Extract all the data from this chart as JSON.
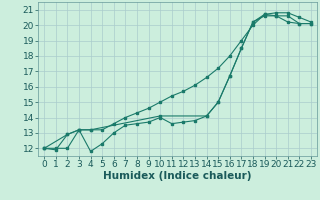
{
  "xlabel": "Humidex (Indice chaleur)",
  "bg_color": "#cceedd",
  "grid_color": "#aacccc",
  "line_color": "#1a7a6a",
  "xlim": [
    -0.5,
    23.5
  ],
  "ylim": [
    11.5,
    21.5
  ],
  "xticks": [
    0,
    1,
    2,
    3,
    4,
    5,
    6,
    7,
    8,
    9,
    10,
    11,
    12,
    13,
    14,
    15,
    16,
    17,
    18,
    19,
    20,
    21,
    22,
    23
  ],
  "yticks": [
    12,
    13,
    14,
    15,
    16,
    17,
    18,
    19,
    20,
    21
  ],
  "line1_x": [
    0,
    1,
    2,
    3,
    4,
    5,
    6,
    7,
    8,
    9,
    10,
    11,
    12,
    13,
    14,
    15,
    16,
    17,
    18,
    19,
    20,
    21,
    22,
    23
  ],
  "line1_y": [
    12,
    11.9,
    12.9,
    13.2,
    11.8,
    12.3,
    13.0,
    13.5,
    13.6,
    13.7,
    14.0,
    13.6,
    13.7,
    13.8,
    14.1,
    15.0,
    16.7,
    18.5,
    20.2,
    20.6,
    20.6,
    20.2,
    20.1,
    20.1
  ],
  "line2_x": [
    0,
    1,
    2,
    3,
    4,
    5,
    6,
    7,
    8,
    9,
    10,
    11,
    12,
    13,
    14,
    15,
    16,
    17,
    18,
    19,
    20,
    21,
    22,
    23
  ],
  "line2_y": [
    12,
    12,
    12,
    13.2,
    13.2,
    13.2,
    13.6,
    14.0,
    14.3,
    14.6,
    15.0,
    15.4,
    15.7,
    16.1,
    16.6,
    17.2,
    18.0,
    19.0,
    20.0,
    20.7,
    20.8,
    20.8,
    20.5,
    20.2
  ],
  "line3_x": [
    0,
    2,
    3,
    4,
    10,
    14,
    15,
    16,
    17,
    18,
    19,
    20,
    21,
    22,
    23
  ],
  "line3_y": [
    12,
    12.9,
    13.2,
    13.2,
    14.1,
    14.1,
    15.0,
    16.7,
    18.5,
    20.2,
    20.7,
    20.6,
    20.6,
    20.1,
    20.1
  ],
  "xlabel_fontsize": 7.5,
  "tick_fontsize": 6.5
}
